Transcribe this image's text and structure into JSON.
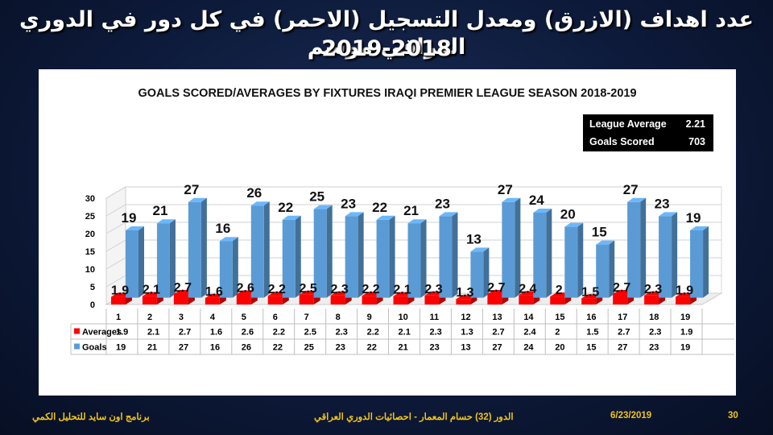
{
  "heading": {
    "line1": "عدد اهداف (الازرق) ومعدل التسجيل (الاحمر) في كل دور في الدوري العراقي موسم",
    "line2": "2019-2018"
  },
  "kpi": [
    {
      "label": "League Average",
      "value": "2.21"
    },
    {
      "label": "Goals Scored",
      "value": "703"
    }
  ],
  "footer": {
    "left": "برنامج اون سايد للتحليل الكمي",
    "center": "الدور (32) حسام المعمار - احصائيات الدوري العراقي",
    "date": "6/23/2019",
    "page": "30"
  },
  "colors": {
    "goals": "#5b9bd5",
    "averages": "#ff0000",
    "background": "#0b1733",
    "footer_text": "#f0c419"
  },
  "chart_data": {
    "type": "bar",
    "title": "GOALS SCORED/AVERAGES BY FIXTURES IRAQI PREMIER LEAGUE SEASON 2018-2019",
    "categories": [
      "1",
      "2",
      "3",
      "4",
      "5",
      "6",
      "7",
      "8",
      "9",
      "10",
      "11",
      "12",
      "13",
      "14",
      "15",
      "16",
      "17",
      "18",
      "19"
    ],
    "series": [
      {
        "name": "Averages",
        "values": [
          1.9,
          2.1,
          2.7,
          1.6,
          2.6,
          2.2,
          2.5,
          2.3,
          2.2,
          2.1,
          2.3,
          1.3,
          2.7,
          2.4,
          2,
          1.5,
          2.7,
          2.3,
          1.9
        ],
        "color": "#ff0000"
      },
      {
        "name": "Goals",
        "values": [
          19,
          21,
          27,
          16,
          26,
          22,
          25,
          23,
          22,
          21,
          23,
          13,
          27,
          24,
          20,
          15,
          27,
          23,
          19
        ],
        "color": "#5b9bd5"
      }
    ],
    "yticks": [
      "0",
      "5",
      "10",
      "15",
      "20",
      "25",
      "30"
    ],
    "ylim": [
      0,
      30
    ],
    "grid": true,
    "style": "3d-clustered-column-with-data-table",
    "legend": "data-table"
  }
}
